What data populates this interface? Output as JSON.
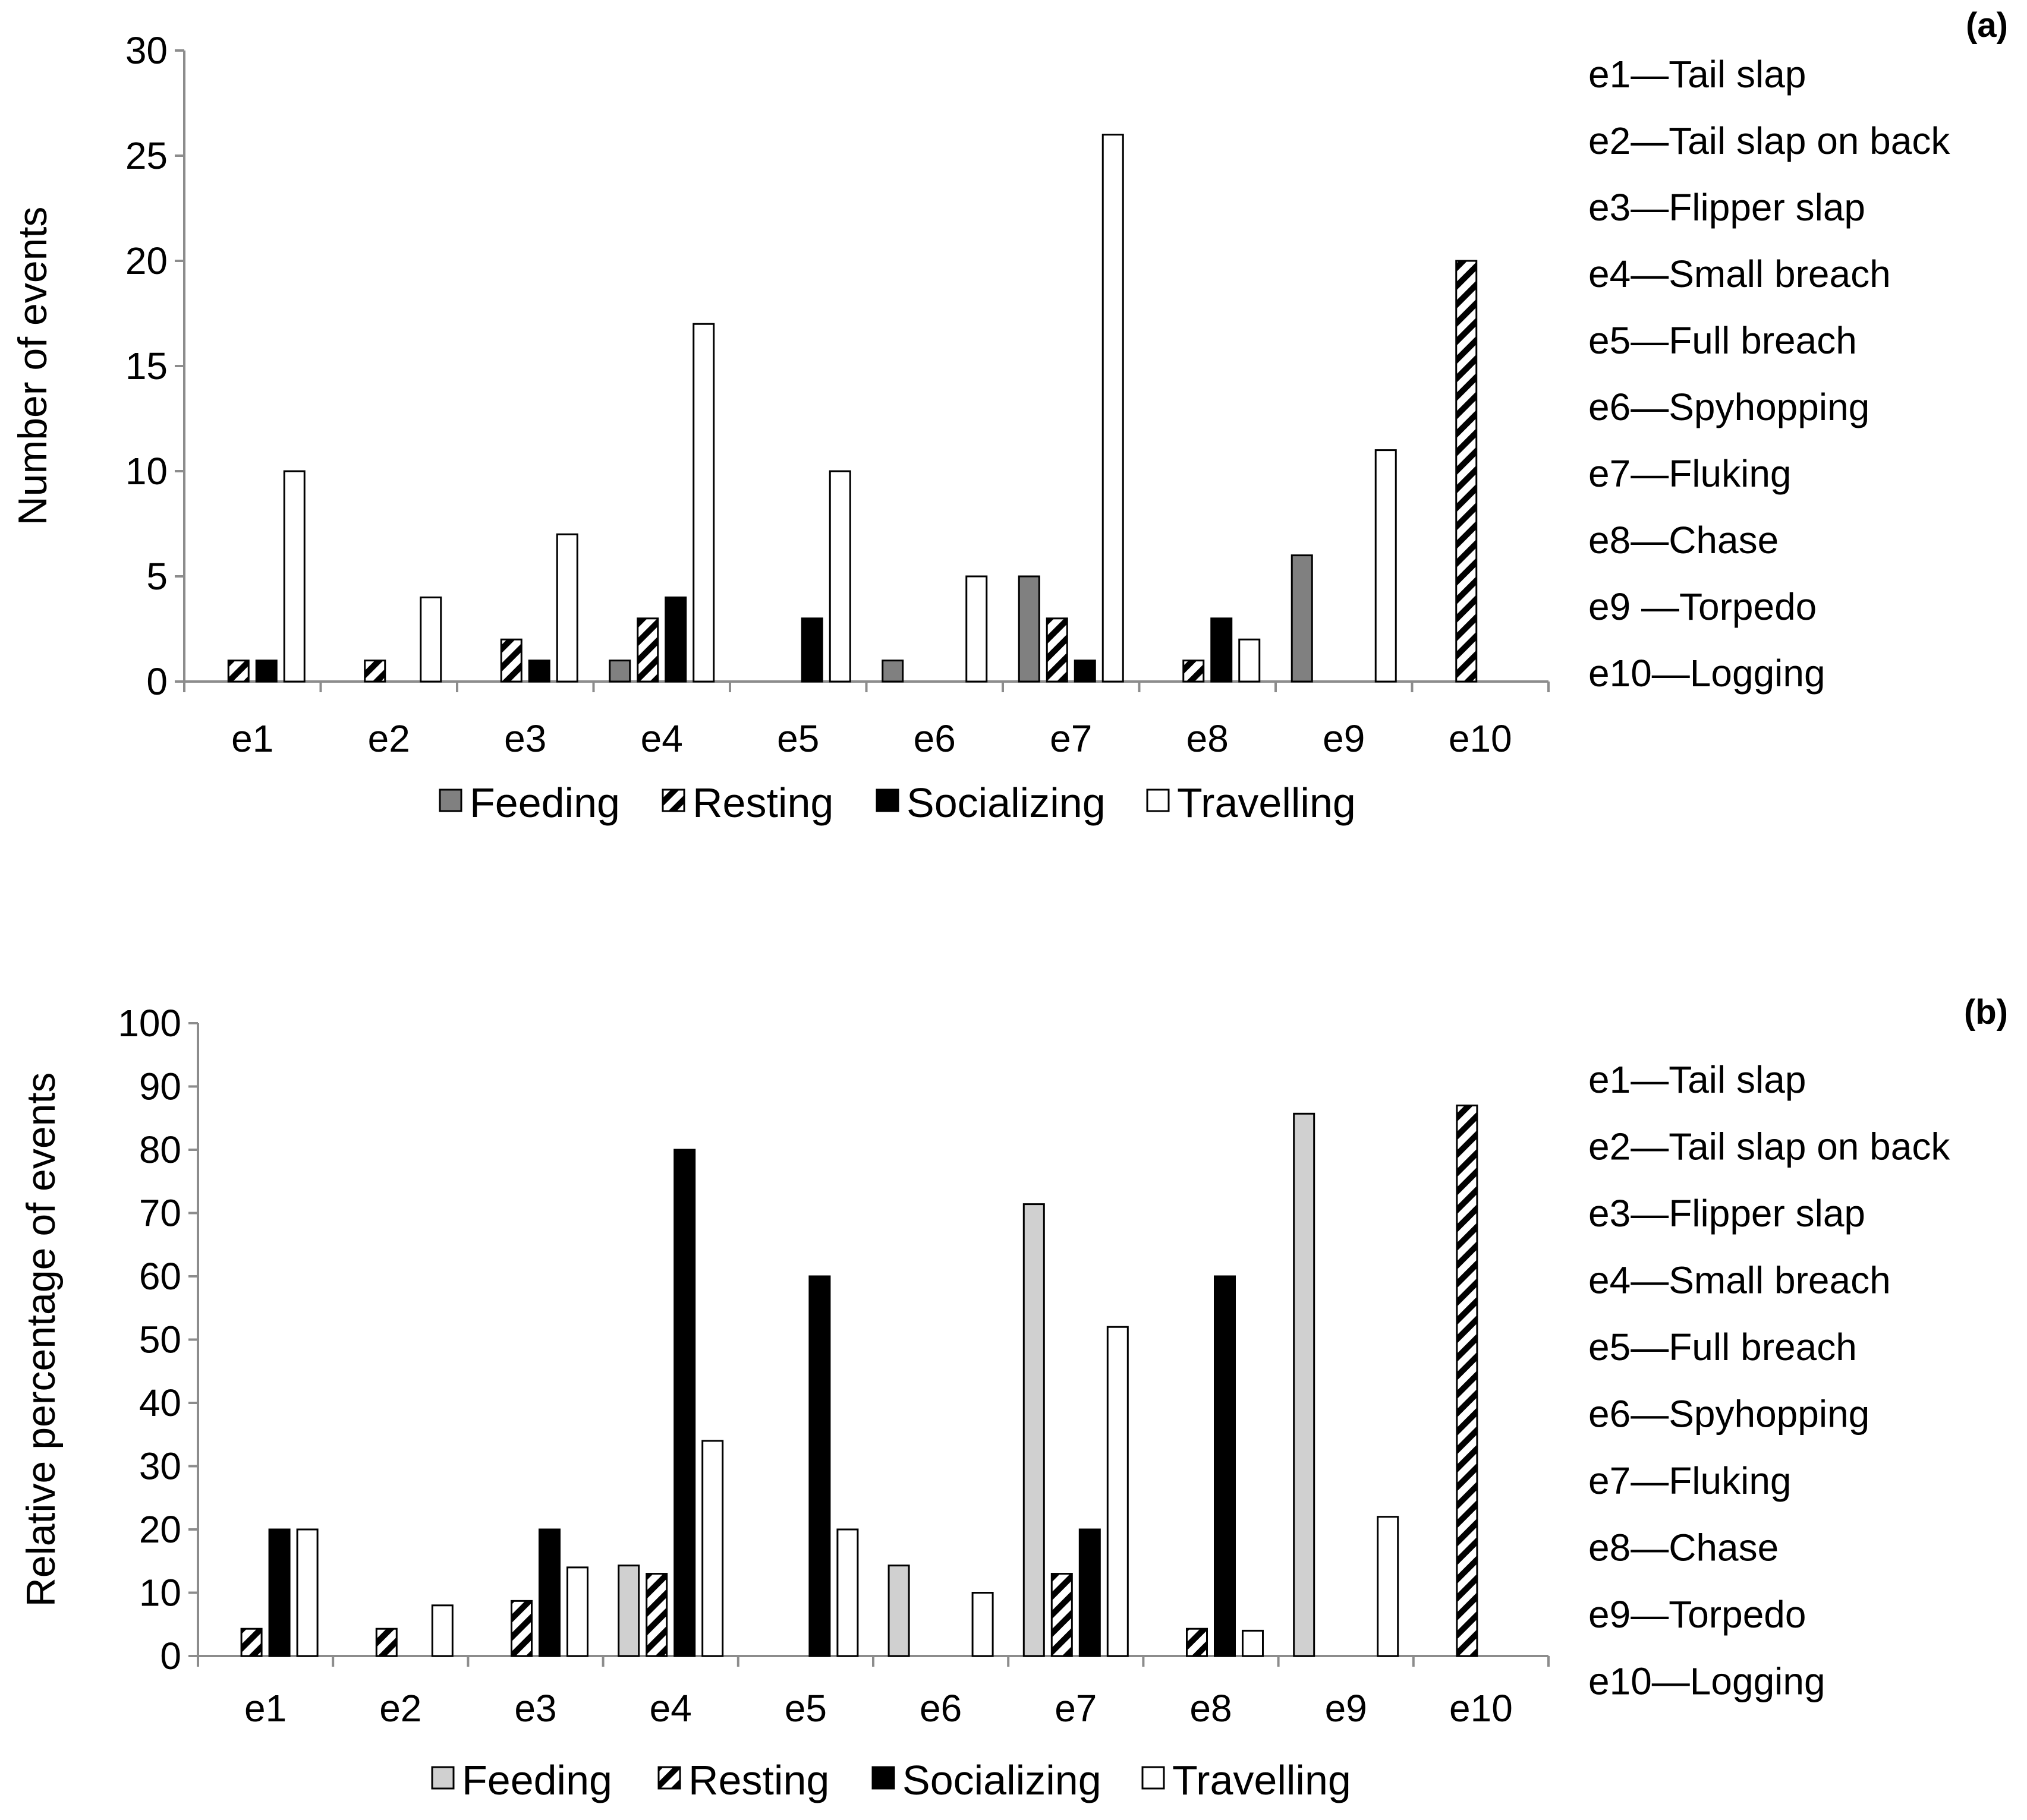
{
  "chart_data": [
    {
      "type": "bar",
      "panel_label": "(a)",
      "ylabel": "Number of events",
      "ylim": [
        0,
        30
      ],
      "yticks": [
        "0",
        "5",
        "10",
        "15",
        "20",
        "25",
        "30"
      ],
      "categories": [
        "e1",
        "e2",
        "e3",
        "e4",
        "e5",
        "e6",
        "e7",
        "e8",
        "e9",
        "e10"
      ],
      "series": [
        {
          "name": "Feeding",
          "style": "gray",
          "color": "#808080",
          "values": [
            0,
            0,
            0,
            1,
            0,
            1,
            5,
            0,
            6,
            0
          ]
        },
        {
          "name": "Resting",
          "style": "hatched",
          "color": "#000000",
          "values": [
            1,
            1,
            2,
            3,
            0,
            0,
            3,
            1,
            0,
            20
          ]
        },
        {
          "name": "Socializing",
          "style": "black",
          "color": "#000000",
          "values": [
            1,
            0,
            1,
            4,
            3,
            0,
            1,
            3,
            0,
            0
          ]
        },
        {
          "name": "Travelling",
          "style": "white",
          "color": "#ffffff",
          "values": [
            10,
            4,
            7,
            17,
            10,
            5,
            26,
            2,
            11,
            0
          ]
        }
      ],
      "event_key": [
        "e1—Tail slap",
        "e2—Tail slap on back",
        "e3—Flipper slap",
        "e4—Small breach",
        "e5—Full breach",
        "e6—Spyhopping",
        "e7—Fluking",
        "e8—Chase",
        "e9 —Torpedo",
        "e10—Logging"
      ]
    },
    {
      "type": "bar",
      "panel_label": "(b)",
      "ylabel": "Relative percentage of events",
      "ylim": [
        0,
        100
      ],
      "yticks": [
        "0",
        "10",
        "20",
        "30",
        "40",
        "50",
        "60",
        "70",
        "80",
        "90",
        "100"
      ],
      "categories": [
        "e1",
        "e2",
        "e3",
        "e4",
        "e5",
        "e6",
        "e7",
        "e8",
        "e9",
        "e10"
      ],
      "series": [
        {
          "name": "Feeding",
          "style": "light",
          "color": "#d0d0d0",
          "values": [
            0,
            0,
            0,
            14.3,
            0,
            14.3,
            71.4,
            0,
            85.7,
            0
          ]
        },
        {
          "name": "Resting",
          "style": "hatched",
          "color": "#000000",
          "values": [
            4.3,
            4.3,
            8.7,
            13,
            0,
            0,
            13,
            4.3,
            0,
            87
          ]
        },
        {
          "name": "Socializing",
          "style": "black",
          "color": "#000000",
          "values": [
            20,
            0,
            20,
            80,
            60,
            0,
            20,
            60,
            0,
            0
          ]
        },
        {
          "name": "Travelling",
          "style": "white",
          "color": "#ffffff",
          "values": [
            20,
            8,
            14,
            34,
            20,
            10,
            52,
            4,
            22,
            0
          ]
        }
      ],
      "event_key": [
        "e1—Tail slap",
        "e2—Tail slap on back",
        "e3—Flipper slap",
        "e4—Small breach",
        "e5—Full breach",
        "e6—Spyhopping",
        "e7—Fluking",
        "e8—Chase",
        "e9—Torpedo",
        "e10—Logging"
      ]
    }
  ]
}
